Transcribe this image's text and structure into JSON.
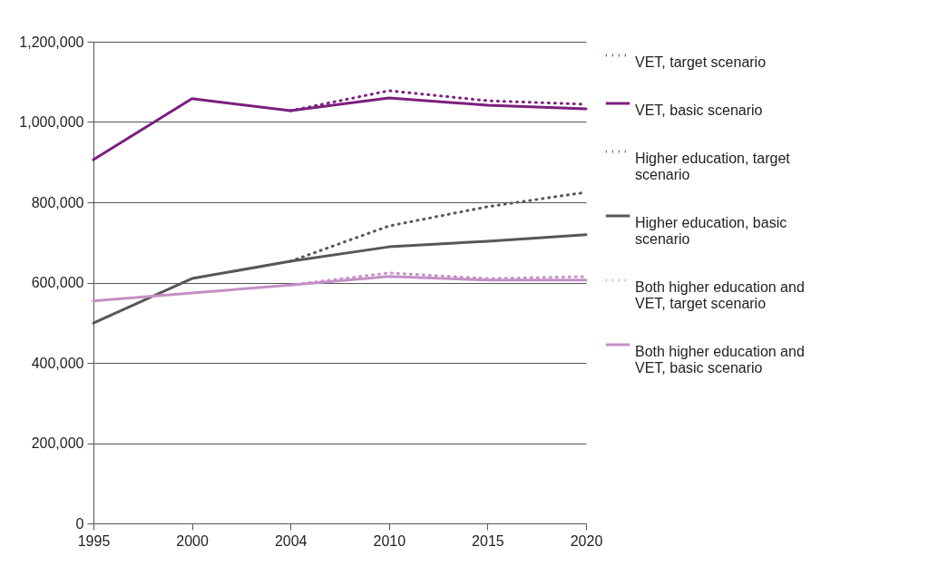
{
  "chart_data": {
    "type": "line",
    "categories": [
      "1995",
      "2000",
      "2004",
      "2010",
      "2015",
      "2020"
    ],
    "ylim": [
      0,
      1200000
    ],
    "yticks": [
      {
        "value": 0,
        "label": "0"
      },
      {
        "value": 200000,
        "label": "200,000"
      },
      {
        "value": 400000,
        "label": "400,000"
      },
      {
        "value": 600000,
        "label": "600,000"
      },
      {
        "value": 800000,
        "label": "800,000"
      },
      {
        "value": 1000000,
        "label": "1,000,000"
      },
      {
        "value": 1200000,
        "label": "1,200,000"
      }
    ],
    "grid": "y",
    "legend": "right",
    "marker": "none",
    "series": [
      {
        "name": "VET, target scenario",
        "color": "#7b1f7d",
        "line_style": "dotted",
        "values": [
          null,
          null,
          1028000,
          1078000,
          1053000,
          1044000
        ]
      },
      {
        "name": "VET, basic scenario",
        "color": "#7b1f7d",
        "line_style": "solid",
        "values": [
          906000,
          1058000,
          1028000,
          1060000,
          1042000,
          1033000
        ]
      },
      {
        "name": "Higher education, target scenario",
        "color": "#575757",
        "line_style": "dotted",
        "values": [
          null,
          null,
          653000,
          741000,
          789000,
          825000
        ]
      },
      {
        "name": "Higher education, basic scenario",
        "color": "#575757",
        "line_style": "solid",
        "values": [
          499000,
          610000,
          653000,
          689000,
          703000,
          719000
        ]
      },
      {
        "name": "Both higher education and VET, target scenario",
        "color": "#c490c6",
        "line_style": "dotted",
        "values": [
          null,
          null,
          594000,
          624000,
          610000,
          615000
        ]
      },
      {
        "name": "Both higher education and VET, basic scenario",
        "color": "#c490c6",
        "line_style": "solid",
        "values": [
          554000,
          574000,
          594000,
          615000,
          606000,
          606000
        ]
      }
    ]
  }
}
